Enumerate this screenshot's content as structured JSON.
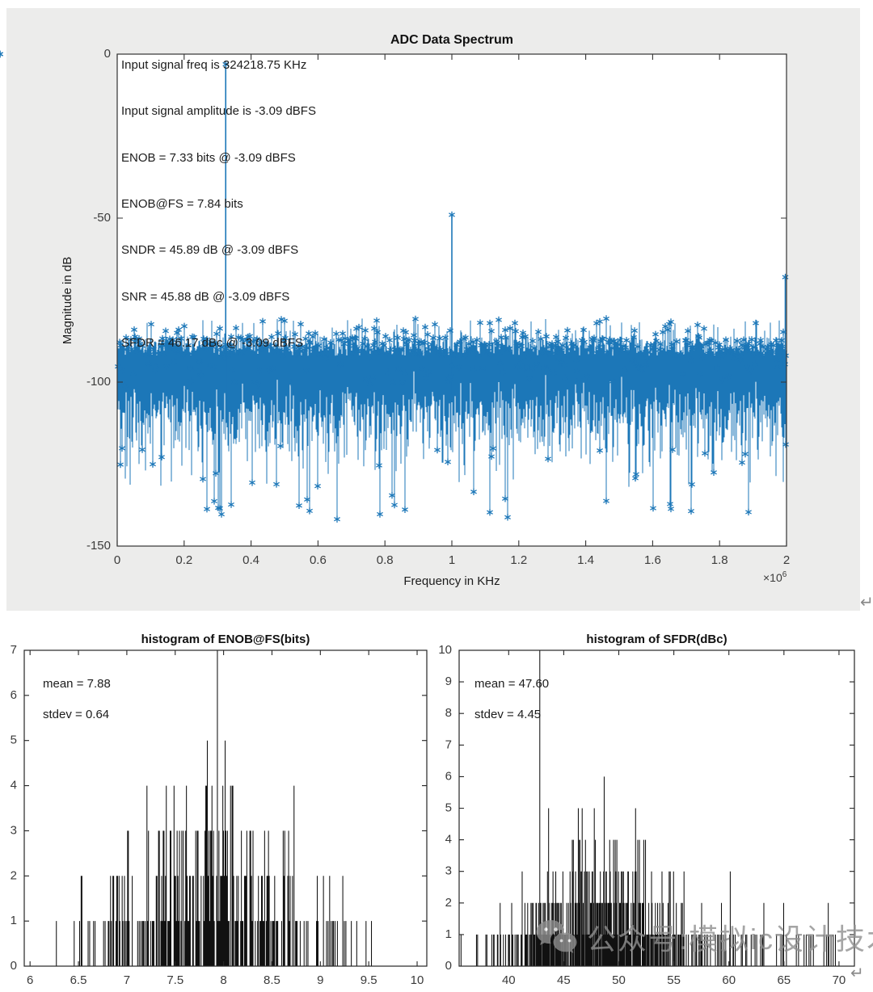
{
  "chart_data": [
    {
      "id": "adc-spectrum",
      "type": "line",
      "title": "ADC Data Spectrum",
      "xlabel": "Frequency in KHz",
      "x_multiplier": "×10^6",
      "ylabel": "Magnitude in dB",
      "xlim_khz": [
        0,
        2000000
      ],
      "ylim_db": [
        -150,
        0
      ],
      "xtick_labels": [
        "0",
        "0.2",
        "0.4",
        "0.6",
        "0.8",
        "1",
        "1.2",
        "1.4",
        "1.6",
        "1.8",
        "2"
      ],
      "ytick_labels": [
        "0",
        "-50",
        "-100",
        "-150"
      ],
      "grid": false,
      "line_color": "#1C77B8",
      "marker": "asterisk",
      "annotations": [
        "Input signal freq is 324218.75 KHz",
        "Input signal amplitude is -3.09 dBFS",
        "ENOB = 7.33 bits @ -3.09 dBFS",
        "ENOB@FS = 7.84 bits",
        "SNDR = 45.89 dB @ -3.09 dBFS",
        "SNR = 45.88 dB @ -3.09 dBFS",
        "SFDR = 46.17 dBc @ -3.09 dBFS"
      ],
      "metrics": {
        "input_freq_khz": 324218.75,
        "amplitude_dbfs": -3.09,
        "enob_bits": 7.33,
        "enob_fs_bits": 7.84,
        "sndr_db": 45.89,
        "snr_db": 45.88,
        "sfdr_dbc": 46.17
      },
      "tones": [
        {
          "freq_khz": 324218.75,
          "mag_db": -3.09,
          "name": "fundamental"
        },
        {
          "freq_khz": 1000000,
          "mag_db": -49,
          "name": "largest-spur"
        },
        {
          "freq_khz": 2000000,
          "mag_db": -68,
          "name": "edge-spur"
        }
      ],
      "noise_floor": {
        "mean_db": -105,
        "band_top_db": -86,
        "band_bottom_db": -112,
        "outlier_top_db": -80,
        "outlier_bottom_db": -142
      }
    },
    {
      "id": "enob-histogram",
      "type": "bar",
      "title": "histogram of ENOB@FS(bits)",
      "mean_label": "mean = 7.88",
      "stdev_label": "stdev = 0.64",
      "mean": 7.88,
      "stdev": 0.64,
      "bar_color": "#111111",
      "xlim": [
        5.94,
        10.1
      ],
      "ylim": [
        0,
        7
      ],
      "xtick_labels": [
        "6",
        "6.5",
        "7",
        "7.5",
        "8",
        "8.5",
        "9",
        "9.5",
        "10"
      ],
      "ytick_labels": [
        "0",
        "1",
        "2",
        "3",
        "4",
        "5",
        "6",
        "7"
      ],
      "samples": 380,
      "bin_width": 0.008,
      "tail_fraction": 0.0,
      "tail_range": [
        8.8,
        9.8
      ]
    },
    {
      "id": "sfdr-histogram",
      "type": "bar",
      "title": "histogram of SFDR(dBc)",
      "mean_label": "mean = 47.60",
      "stdev_label": "stdev = 4.45",
      "mean": 47.6,
      "stdev": 4.45,
      "bar_color": "#111111",
      "xlim": [
        35.5,
        71.4
      ],
      "ylim": [
        0,
        10
      ],
      "xtick_labels": [
        "40",
        "45",
        "50",
        "55",
        "60",
        "65",
        "70"
      ],
      "ytick_labels": [
        "0",
        "1",
        "2",
        "3",
        "4",
        "5",
        "6",
        "7",
        "8",
        "9",
        "10"
      ],
      "samples": 560,
      "bin_width": 0.05,
      "tail_fraction": 0.1,
      "tail_range": [
        53,
        70.5
      ]
    }
  ],
  "watermark": {
    "text": "公众号:模拟ic设计技术",
    "icon": "wechat-icon"
  },
  "page": {
    "return_mark": "↵"
  }
}
